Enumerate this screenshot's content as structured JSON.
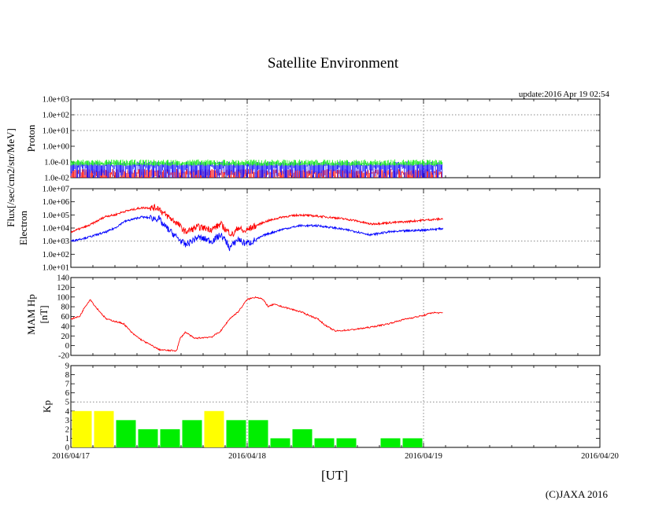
{
  "title": "Satellite Environment",
  "update": "update:2016 Apr 19 02:54",
  "xunit": "[UT]",
  "copyright": "(C)JAXA 2016",
  "colors": {
    "red": "#ff0000",
    "blue": "#0000ff",
    "green": "#00ee00",
    "yellow": "#ffff00",
    "grid": "#888888"
  },
  "chart_data": [
    {
      "type": "line",
      "name": "proton",
      "yscale": "log",
      "ylim": [
        0.01,
        1000
      ],
      "yticks": [
        "1.0e-02",
        "1.0e-01",
        "1.0e+00",
        "1.0e+01",
        "1.0e+02",
        "1.0e+03"
      ],
      "ylabel": [
        "Proton"
      ],
      "x_range_days": [
        0,
        3
      ],
      "data_end_day": 2.11,
      "series": [
        {
          "name": "green",
          "color": "#00ee00",
          "typical": 0.08
        },
        {
          "name": "blue",
          "color": "#0000ff",
          "typical": 0.06
        },
        {
          "name": "red",
          "color": "#ff0000",
          "typical": 0.02
        }
      ]
    },
    {
      "type": "line",
      "name": "electron",
      "yscale": "log",
      "ylim": [
        10,
        10000000
      ],
      "yticks": [
        "1.0e+01",
        "1.0e+02",
        "1.0e+03",
        "1.0e+04",
        "1.0e+05",
        "1.0e+06",
        "1.0e+07"
      ],
      "ylabel": [
        "Flux[/sec/cm2/str/MeV]",
        "Electron"
      ],
      "x_range_days": [
        0,
        3
      ],
      "series": [
        {
          "name": "red",
          "color": "#ff0000",
          "x": [
            0,
            0.1,
            0.2,
            0.25,
            0.3,
            0.4,
            0.5,
            0.52,
            0.6,
            0.65,
            0.72,
            0.8,
            0.85,
            0.88,
            0.92,
            0.95,
            0.98,
            1.02,
            1.1,
            1.2,
            1.3,
            1.4,
            1.5,
            1.6,
            1.7,
            1.8,
            1.9,
            2.0,
            2.11
          ],
          "y": [
            5000,
            15000,
            80000,
            100000,
            180000,
            350000,
            350000,
            150000,
            25000,
            5000,
            12000,
            8000,
            20000,
            7000,
            3000,
            12000,
            5000,
            10000,
            30000,
            70000,
            100000,
            80000,
            60000,
            40000,
            20000,
            25000,
            30000,
            40000,
            50000
          ]
        },
        {
          "name": "blue",
          "color": "#0000ff",
          "x": [
            0,
            0.1,
            0.2,
            0.25,
            0.3,
            0.4,
            0.5,
            0.52,
            0.6,
            0.65,
            0.72,
            0.8,
            0.85,
            0.88,
            0.9,
            0.95,
            0.98,
            1.02,
            1.1,
            1.2,
            1.3,
            1.4,
            1.5,
            1.6,
            1.7,
            1.8,
            1.9,
            2.0,
            2.11
          ],
          "y": [
            1000,
            2000,
            5000,
            10000,
            30000,
            70000,
            50000,
            20000,
            2000,
            500,
            2000,
            1000,
            3000,
            1000,
            300,
            1500,
            700,
            800,
            3000,
            8000,
            15000,
            15000,
            10000,
            6000,
            3000,
            5000,
            6000,
            7000,
            9000
          ]
        }
      ]
    },
    {
      "type": "line",
      "name": "mam_hp",
      "ylim": [
        -20,
        140
      ],
      "yticks": [
        "-20",
        "0",
        "20",
        "40",
        "60",
        "80",
        "100",
        "120",
        "140"
      ],
      "ylabel": [
        "MAM Hp",
        "[nT]"
      ],
      "x_range_days": [
        0,
        3
      ],
      "series": [
        {
          "name": "Hp",
          "color": "#ff0000",
          "x": [
            0,
            0.05,
            0.08,
            0.11,
            0.14,
            0.2,
            0.3,
            0.35,
            0.4,
            0.45,
            0.5,
            0.55,
            0.6,
            0.62,
            0.65,
            0.7,
            0.8,
            0.85,
            0.9,
            0.95,
            0.98,
            1.0,
            1.05,
            1.08,
            1.1,
            1.12,
            1.15,
            1.2,
            1.3,
            1.4,
            1.45,
            1.5,
            1.6,
            1.7,
            1.8,
            1.9,
            2.0,
            2.05,
            2.11
          ],
          "y": [
            55,
            60,
            80,
            95,
            80,
            55,
            45,
            25,
            12,
            2,
            -8,
            -10,
            -10,
            15,
            28,
            15,
            18,
            30,
            55,
            70,
            85,
            95,
            100,
            97,
            90,
            80,
            85,
            80,
            70,
            55,
            40,
            30,
            33,
            38,
            45,
            55,
            62,
            68,
            67
          ]
        }
      ]
    },
    {
      "type": "bar",
      "name": "kp",
      "ylim": [
        0,
        9
      ],
      "yticks": [
        "0",
        "1",
        "2",
        "3",
        "4",
        "5",
        "6",
        "7",
        "8",
        "9"
      ],
      "ylabel": [
        "Kp"
      ],
      "interval_hours": 3,
      "values": [
        4,
        4,
        3,
        2,
        2,
        3,
        4,
        3,
        3,
        1,
        2,
        1,
        1,
        0,
        1,
        1
      ],
      "bar_colors": [
        "yellow",
        "yellow",
        "green",
        "green",
        "green",
        "green",
        "yellow",
        "green",
        "green",
        "green",
        "green",
        "green",
        "green",
        "green",
        "green",
        "green"
      ],
      "xticks": [
        "2016/04/17",
        "2016/04/18",
        "2016/04/19",
        "2016/04/20"
      ],
      "xlabel": "[UT]"
    }
  ]
}
